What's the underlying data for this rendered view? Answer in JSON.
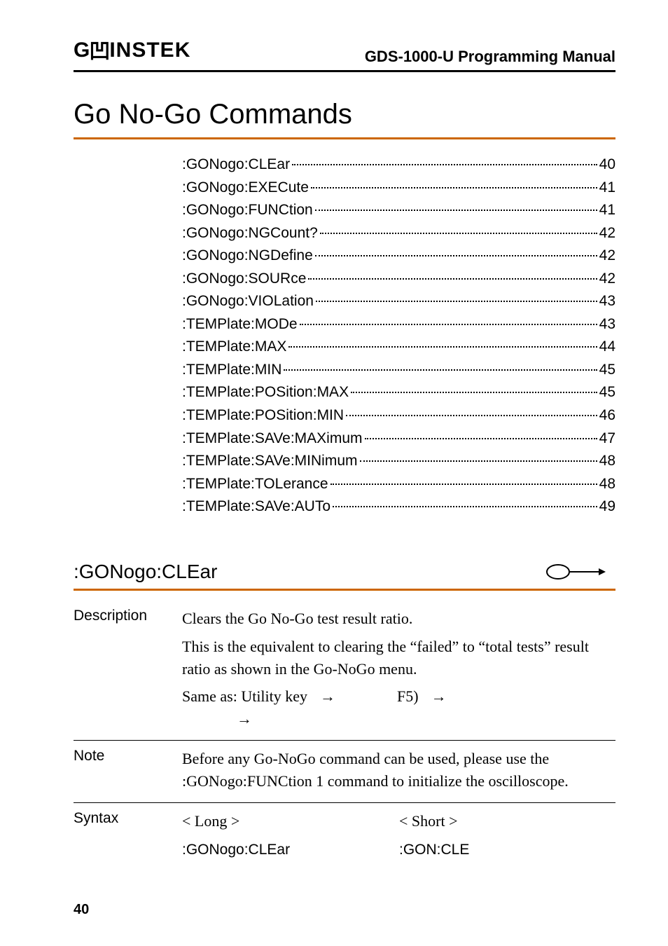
{
  "header": {
    "logo_text_prefix": "G",
    "logo_text_u": "ᴜ",
    "logo_text_suffix": "INSTEK",
    "doc_title": "GDS-1000-U Programming Manual"
  },
  "section_title": "Go No-Go Commands",
  "toc": [
    {
      "label": ":GONogo:CLEar",
      "page": "40"
    },
    {
      "label": ":GONogo:EXECute",
      "page": "41"
    },
    {
      "label": ":GONogo:FUNCtion",
      "page": "41"
    },
    {
      "label": ":GONogo:NGCount?",
      "page": "42"
    },
    {
      "label": ":GONogo:NGDefine",
      "page": "42"
    },
    {
      "label": ":GONogo:SOURce",
      "page": "42"
    },
    {
      "label": ":GONogo:VIOLation",
      "page": "43"
    },
    {
      "label": ":TEMPlate:MODe",
      "page": "43"
    },
    {
      "label": ":TEMPlate:MAX",
      "page": "44"
    },
    {
      "label": ":TEMPlate:MIN",
      "page": "45"
    },
    {
      "label": ":TEMPlate:POSition:MAX",
      "page": "45"
    },
    {
      "label": ":TEMPlate:POSition:MIN",
      "page": "46"
    },
    {
      "label": ":TEMPlate:SAVe:MAXimum",
      "page": "47"
    },
    {
      "label": ":TEMPlate:SAVe:MINimum",
      "page": "48"
    },
    {
      "label": ":TEMPlate:TOLerance",
      "page": "48"
    },
    {
      "label": ":TEMPlate:SAVe:AUTo",
      "page": "49"
    }
  ],
  "command": {
    "name": ":GONogo:CLEar",
    "description": {
      "label": "Description",
      "text1": "Clears the Go No-Go test result ratio.",
      "text2": "This is the equivalent to clearing the “failed” to “total tests” result ratio as shown in the Go-NoGo menu.",
      "same_as_prefix": "Same as: Utility key",
      "same_as_mid": "F5)"
    },
    "note": {
      "label": "Note",
      "text": "Before any Go-NoGo command can be used, please use the :GONogo:FUNCtion 1 command to initialize the oscilloscope."
    },
    "syntax": {
      "label": "Syntax",
      "long_hdr": "< Long >",
      "short_hdr": "< Short >",
      "long_val": ":GONogo:CLEar",
      "short_val": ":GON:CLE"
    }
  },
  "page_number": "40",
  "colors": {
    "accent": "#cc6600"
  }
}
